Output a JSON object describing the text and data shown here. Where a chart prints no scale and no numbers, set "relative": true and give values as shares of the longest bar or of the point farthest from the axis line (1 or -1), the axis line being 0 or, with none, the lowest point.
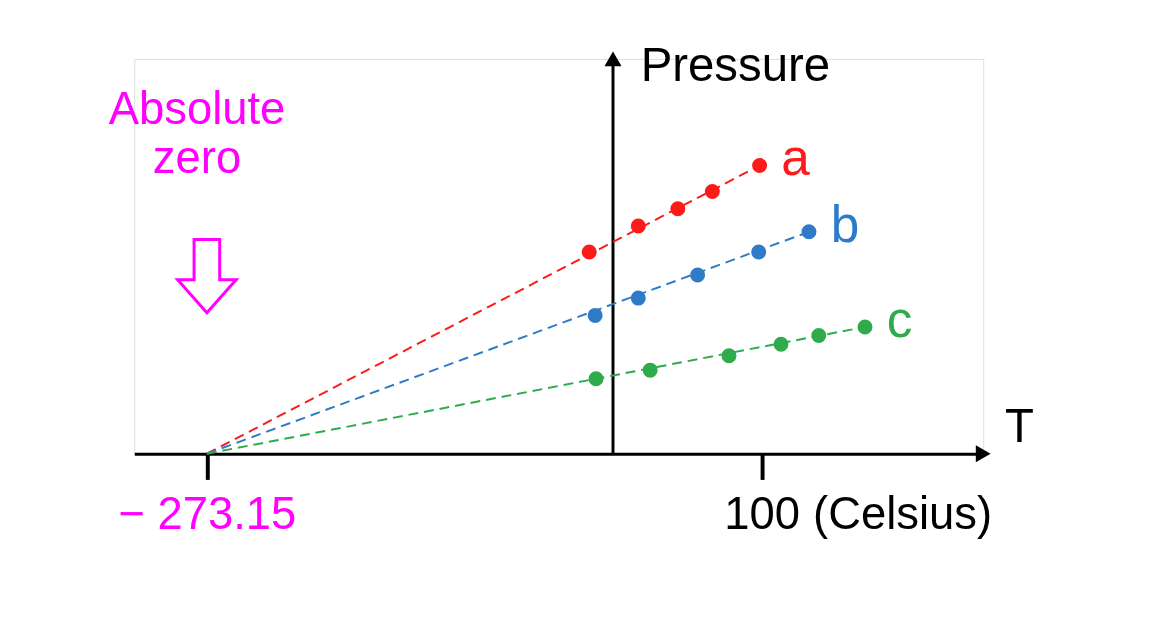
{
  "chart_data": {
    "type": "scatter",
    "relative": true,
    "ylabel": "Pressure",
    "xlabel": "T",
    "annotations": [
      "Absolute zero",
      "(Celsius)"
    ],
    "xlim": [
      -322,
      249
    ],
    "xticks": [
      {
        "value": -273.15,
        "label": "− 273.15"
      },
      100
    ],
    "legend": false,
    "grid": false,
    "marker": "circle",
    "series": [
      {
        "name": "a",
        "color": "#ff1a1a",
        "x": [
          -16,
          17,
          43.6,
          66.8,
          98.6
        ],
        "values": [
          0.7,
          0.79,
          0.85,
          0.91,
          1.0
        ]
      },
      {
        "name": "b",
        "color": "#2f7bc8",
        "x": [
          -12,
          17,
          56.9,
          98,
          131.8
        ],
        "values": [
          0.48,
          0.54,
          0.62,
          0.7,
          0.77
        ]
      },
      {
        "name": "c",
        "color": "#2eab4a",
        "x": [
          -11.4,
          25,
          78,
          113,
          138.4,
          169.5
        ],
        "values": [
          0.26,
          0.29,
          0.34,
          0.38,
          0.41,
          0.44
        ]
      },
      {
        "type": "line",
        "marker": "none",
        "line_style": "dashed",
        "color": "#ff1a1a",
        "x": [
          -273.15,
          98.6
        ],
        "values": [
          0,
          1.0
        ]
      },
      {
        "type": "line",
        "marker": "none",
        "line_style": "dashed",
        "color": "#2f7bc8",
        "x": [
          -273.15,
          131.8
        ],
        "values": [
          0,
          0.77
        ]
      },
      {
        "type": "line",
        "marker": "none",
        "line_style": "dashed",
        "color": "#2eab4a",
        "x": [
          -273.15,
          169.5
        ],
        "values": [
          0,
          0.44
        ]
      }
    ]
  }
}
